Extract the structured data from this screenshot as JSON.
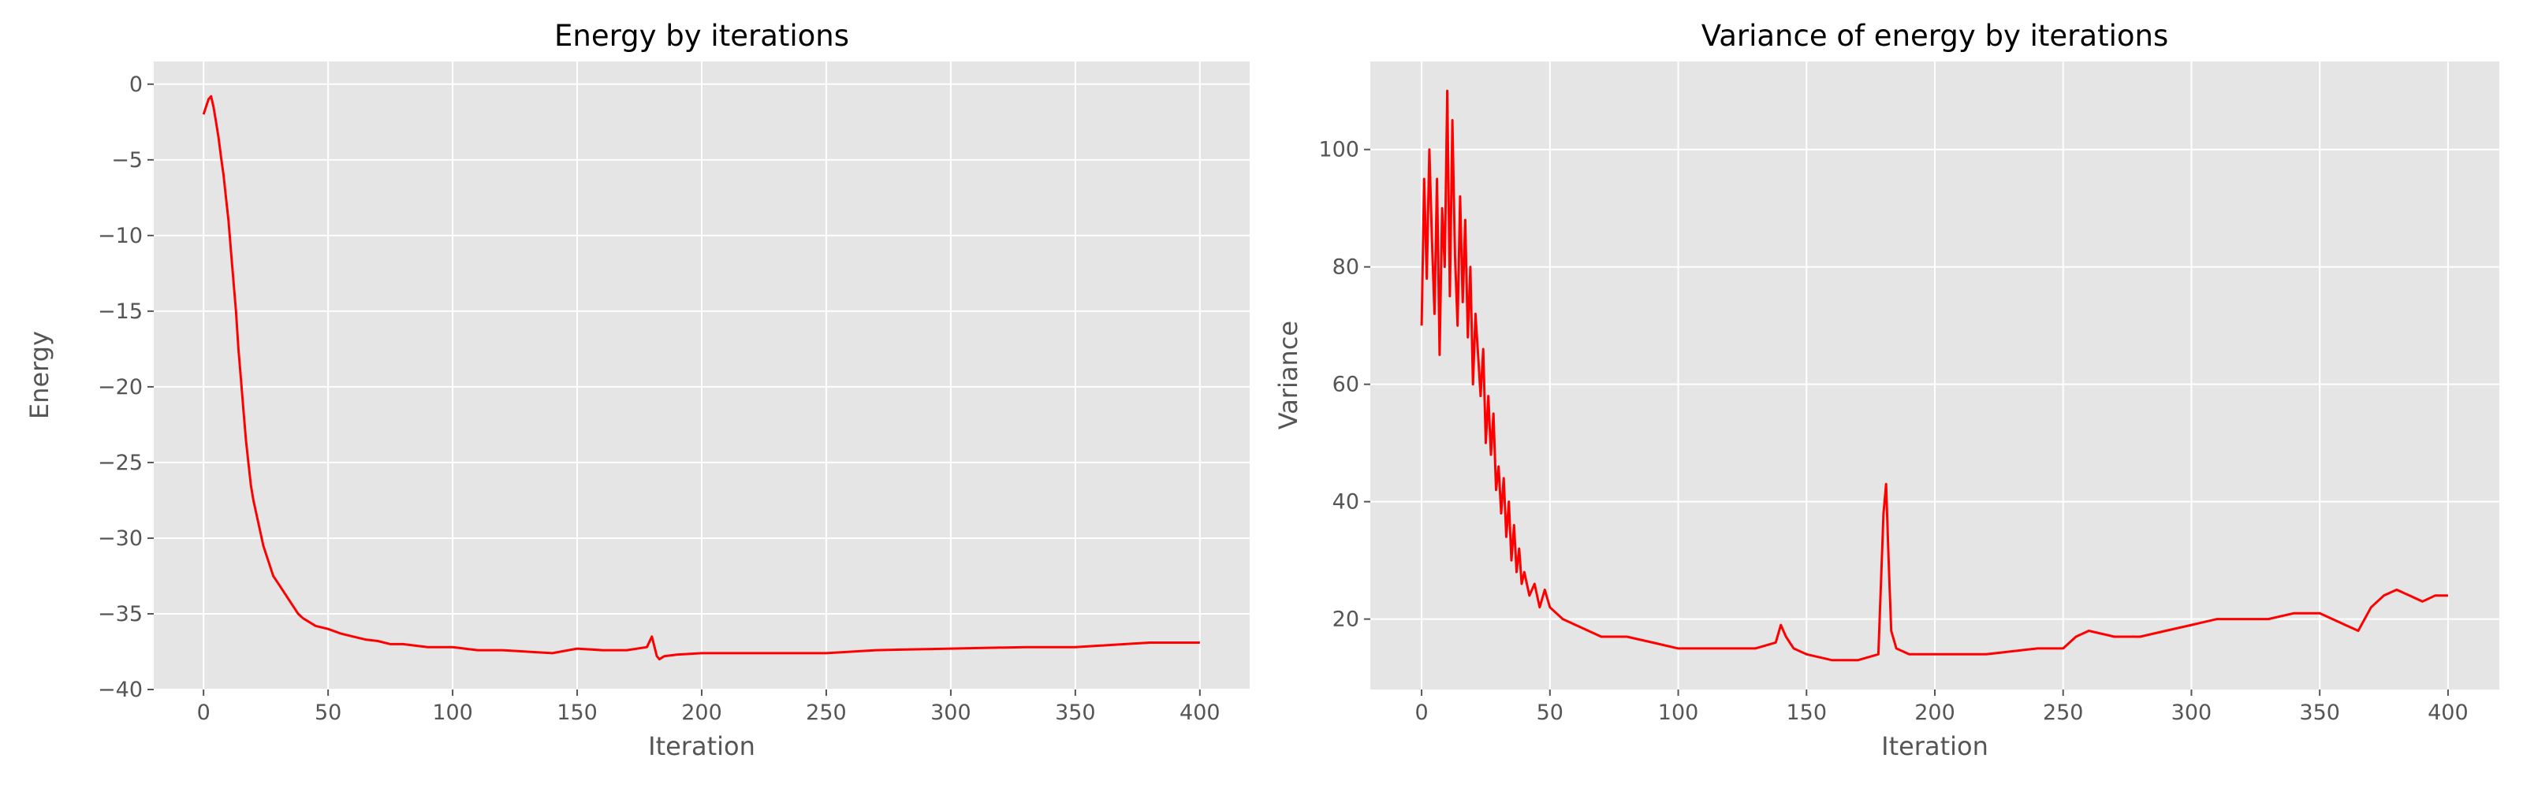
{
  "chart_data": [
    {
      "type": "line",
      "title": "Energy by iterations",
      "xlabel": "Iteration",
      "ylabel": "Energy",
      "xlim": [
        -20,
        420
      ],
      "ylim": [
        -40,
        1.5
      ],
      "xticks": [
        0,
        50,
        100,
        150,
        200,
        250,
        300,
        350,
        400
      ],
      "yticks": [
        0,
        -5,
        -10,
        -15,
        -20,
        -25,
        -30,
        -35,
        -40
      ],
      "grid": true,
      "color": "#ff0000",
      "series": [
        {
          "x": [
            0,
            1,
            2,
            3,
            4,
            5,
            6,
            7,
            8,
            9,
            10,
            11,
            12,
            13,
            14,
            15,
            16,
            17,
            18,
            19,
            20,
            22,
            24,
            26,
            28,
            30,
            32,
            34,
            36,
            38,
            40,
            45,
            50,
            55,
            60,
            65,
            70,
            75,
            80,
            90,
            100,
            110,
            120,
            130,
            140,
            150,
            160,
            170,
            178,
            180,
            182,
            183,
            185,
            190,
            200,
            220,
            250,
            270,
            300,
            330,
            350,
            360,
            370,
            380,
            390,
            400
          ],
          "y": [
            -2.0,
            -1.5,
            -1.0,
            -0.8,
            -1.5,
            -2.5,
            -3.5,
            -4.8,
            -6.0,
            -7.5,
            -9.0,
            -11.0,
            -13.0,
            -15.0,
            -17.5,
            -19.5,
            -21.5,
            -23.5,
            -25.0,
            -26.5,
            -27.5,
            -29.0,
            -30.5,
            -31.5,
            -32.5,
            -33.0,
            -33.5,
            -34.0,
            -34.5,
            -35.0,
            -35.3,
            -35.8,
            -36.0,
            -36.3,
            -36.5,
            -36.7,
            -36.8,
            -37.0,
            -37.0,
            -37.2,
            -37.2,
            -37.4,
            -37.4,
            -37.5,
            -37.6,
            -37.3,
            -37.4,
            -37.4,
            -37.2,
            -36.5,
            -37.8,
            -38.0,
            -37.8,
            -37.7,
            -37.6,
            -37.6,
            -37.6,
            -37.4,
            -37.3,
            -37.2,
            -37.2,
            -37.1,
            -37.0,
            -36.9,
            -36.9,
            -36.9
          ]
        }
      ]
    },
    {
      "type": "line",
      "title": "Variance of energy by iterations",
      "xlabel": "Iteration",
      "ylabel": "Variance",
      "xlim": [
        -20,
        420
      ],
      "ylim": [
        8,
        115
      ],
      "xticks": [
        0,
        50,
        100,
        150,
        200,
        250,
        300,
        350,
        400
      ],
      "yticks": [
        20,
        40,
        60,
        80,
        100
      ],
      "grid": true,
      "color": "#ff0000",
      "series": [
        {
          "x": [
            0,
            1,
            2,
            3,
            4,
            5,
            6,
            7,
            8,
            9,
            10,
            11,
            12,
            13,
            14,
            15,
            16,
            17,
            18,
            19,
            20,
            21,
            22,
            23,
            24,
            25,
            26,
            27,
            28,
            29,
            30,
            31,
            32,
            33,
            34,
            35,
            36,
            37,
            38,
            39,
            40,
            42,
            44,
            46,
            48,
            50,
            55,
            60,
            65,
            70,
            80,
            90,
            100,
            110,
            120,
            130,
            138,
            140,
            142,
            145,
            150,
            160,
            170,
            178,
            180,
            181,
            182,
            183,
            185,
            190,
            200,
            220,
            240,
            250,
            255,
            260,
            270,
            280,
            290,
            300,
            310,
            320,
            330,
            340,
            350,
            360,
            365,
            370,
            375,
            380,
            385,
            390,
            395,
            400
          ],
          "y": [
            70,
            95,
            78,
            100,
            85,
            72,
            95,
            65,
            90,
            80,
            110,
            75,
            105,
            82,
            70,
            92,
            74,
            88,
            68,
            80,
            60,
            72,
            65,
            58,
            66,
            50,
            58,
            48,
            55,
            42,
            46,
            38,
            44,
            34,
            40,
            30,
            36,
            28,
            32,
            26,
            28,
            24,
            26,
            22,
            25,
            22,
            20,
            19,
            18,
            17,
            17,
            16,
            15,
            15,
            15,
            15,
            16,
            19,
            17,
            15,
            14,
            13,
            13,
            14,
            38,
            43,
            30,
            18,
            15,
            14,
            14,
            14,
            15,
            15,
            17,
            18,
            17,
            17,
            18,
            19,
            20,
            20,
            20,
            21,
            21,
            19,
            18,
            22,
            24,
            25,
            24,
            23,
            24,
            24
          ]
        }
      ]
    }
  ]
}
